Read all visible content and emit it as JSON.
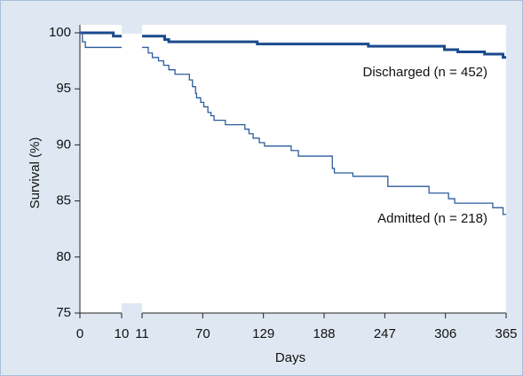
{
  "chart_data": {
    "type": "line",
    "step": true,
    "x_label": "Days",
    "y_label": "Survival (%)",
    "ylim": [
      75,
      100
    ],
    "yticks": [
      75,
      80,
      85,
      90,
      95,
      100
    ],
    "x_segments": [
      {
        "xlim": [
          0,
          10
        ],
        "xticks": [
          0,
          10
        ]
      },
      {
        "xlim": [
          11,
          365
        ],
        "xticks": [
          11,
          70,
          129,
          188,
          247,
          306,
          365
        ]
      }
    ],
    "annotations": [
      "Discharged (n = 452)",
      "Admitted (n = 218)"
    ],
    "series": [
      {
        "name": "Discharged (n = 452)",
        "color": "#1b4a8c",
        "width": 3,
        "x": [
          0,
          8,
          10,
          null,
          11,
          33,
          37,
          123,
          231,
          305,
          318,
          344,
          362,
          365
        ],
        "values": [
          100,
          99.7,
          99.7,
          null,
          99.7,
          99.4,
          99.2,
          99.0,
          98.8,
          98.5,
          98.3,
          98.1,
          97.8,
          97.8
        ]
      },
      {
        "name": "Admitted (n = 218)",
        "color": "#2b5c9e",
        "width": 1.3,
        "x": [
          0,
          0.6,
          1.3,
          10,
          null,
          11,
          17,
          21,
          27,
          32,
          37,
          43,
          57,
          60,
          63,
          64,
          68,
          71,
          75,
          78,
          81,
          92,
          111,
          115,
          119,
          125,
          130,
          156,
          163,
          196,
          198,
          216,
          250,
          290,
          309,
          315,
          352,
          362,
          365
        ],
        "values": [
          100,
          99.2,
          98.7,
          98.7,
          null,
          98.7,
          98.2,
          97.8,
          97.5,
          97.1,
          96.7,
          96.3,
          95.8,
          95.2,
          94.6,
          94.2,
          93.8,
          93.4,
          92.9,
          92.6,
          92.2,
          91.8,
          91.4,
          91.0,
          90.6,
          90.2,
          89.9,
          89.5,
          89.0,
          87.9,
          87.5,
          87.2,
          86.3,
          85.7,
          85.2,
          84.8,
          84.4,
          83.8,
          83.8
        ]
      }
    ]
  }
}
